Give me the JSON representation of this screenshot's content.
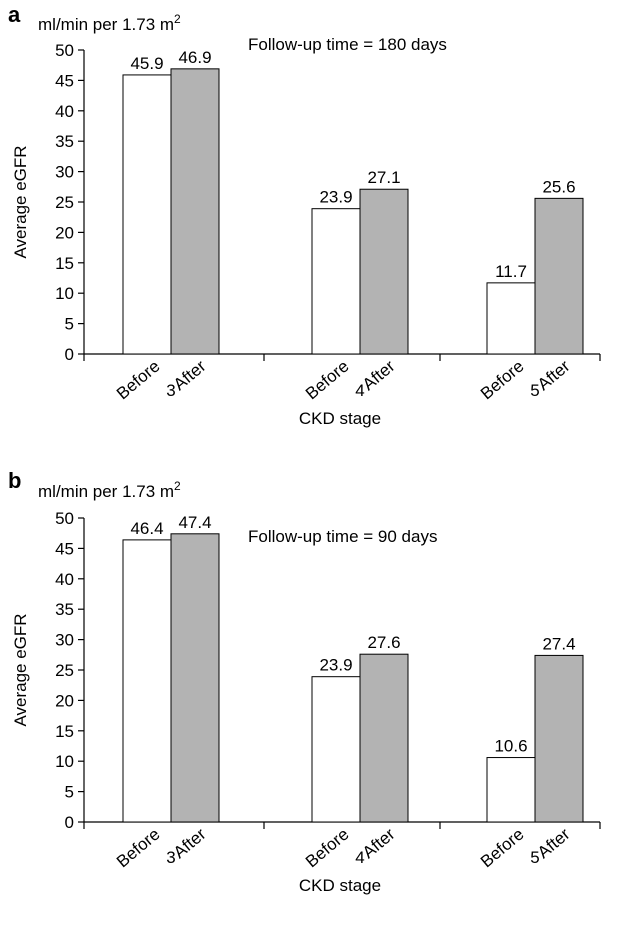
{
  "chart_data": [
    {
      "type": "bar",
      "panel_label": "a",
      "unit_label": "ml/min per 1.73 m",
      "unit_superscript": "2",
      "annotation": "Follow-up time = 180 days",
      "ylabel": "Average eGFR",
      "xlabel": "CKD stage",
      "ylim": [
        0,
        50
      ],
      "yticks": [
        0,
        5,
        10,
        15,
        20,
        25,
        30,
        35,
        40,
        45,
        50
      ],
      "groups": [
        "3",
        "4",
        "5"
      ],
      "bar_labels": [
        "Before",
        "After"
      ],
      "colors": {
        "Before": "#ffffff",
        "After": "#b3b3b3"
      },
      "values": [
        {
          "group": "3",
          "before": 45.9,
          "after": 46.9
        },
        {
          "group": "4",
          "before": 23.9,
          "after": 27.1
        },
        {
          "group": "5",
          "before": 11.7,
          "after": 25.6
        }
      ],
      "value_labels": [
        {
          "before": "45.9",
          "after": "46.9"
        },
        {
          "before": "23.9",
          "after": "27.1"
        },
        {
          "before": "11.7",
          "after": "25.6"
        }
      ]
    },
    {
      "type": "bar",
      "panel_label": "b",
      "unit_label": "ml/min per 1.73 m",
      "unit_superscript": "2",
      "annotation": "Follow-up time = 90 days",
      "ylabel": "Average eGFR",
      "xlabel": "CKD stage",
      "ylim": [
        0,
        50
      ],
      "yticks": [
        0,
        5,
        10,
        15,
        20,
        25,
        30,
        35,
        40,
        45,
        50
      ],
      "groups": [
        "3",
        "4",
        "5"
      ],
      "bar_labels": [
        "Before",
        "After"
      ],
      "colors": {
        "Before": "#ffffff",
        "After": "#b3b3b3"
      },
      "values": [
        {
          "group": "3",
          "before": 46.4,
          "after": 47.4
        },
        {
          "group": "4",
          "before": 23.9,
          "after": 27.6
        },
        {
          "group": "5",
          "before": 10.6,
          "after": 27.4
        }
      ],
      "value_labels": [
        {
          "before": "46.4",
          "after": "47.4"
        },
        {
          "before": "23.9",
          "after": "27.6"
        },
        {
          "before": "10.6",
          "after": "27.4"
        }
      ]
    }
  ]
}
